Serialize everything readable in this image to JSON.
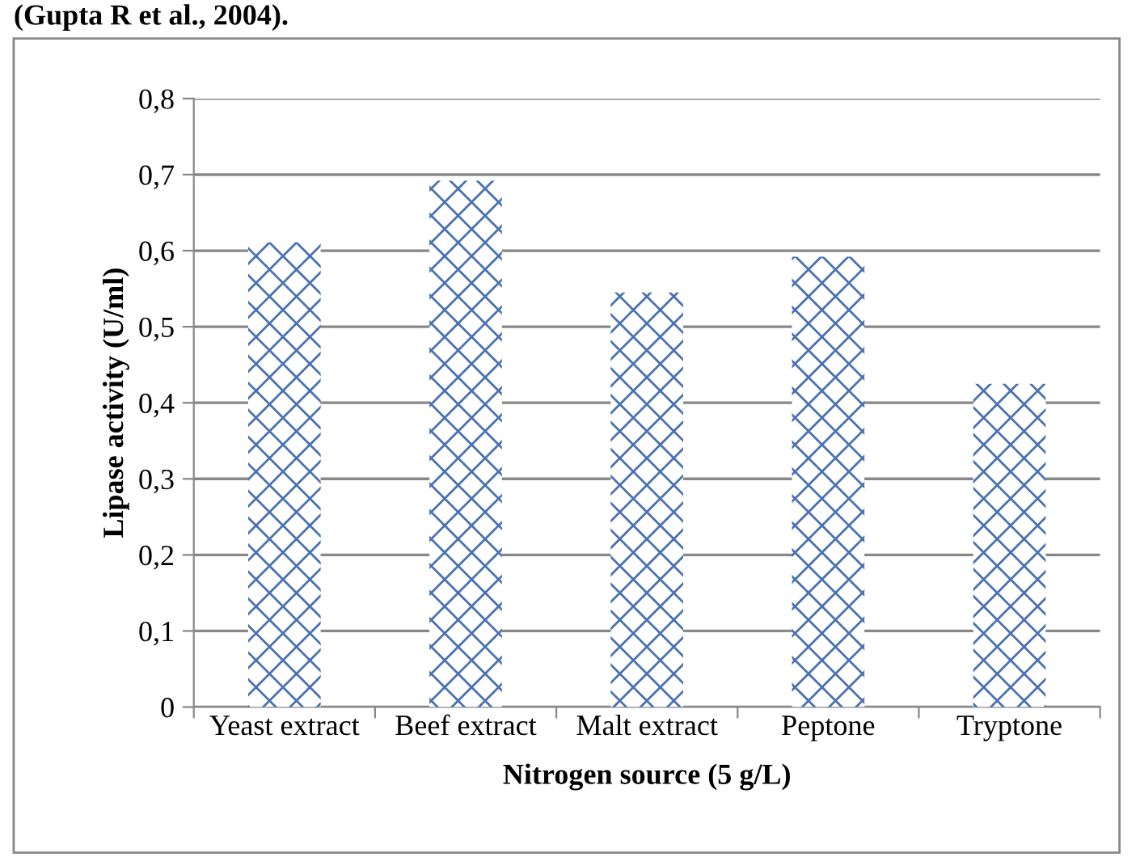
{
  "chart_data": {
    "type": "bar",
    "categories": [
      "Yeast extract",
      "Beef extract",
      "Malt extract",
      "Peptone",
      "Tryptone"
    ],
    "values": [
      0.611,
      0.692,
      0.545,
      0.592,
      0.425
    ],
    "color": "#4a72b0",
    "xlabel": "Nitrogen source (5 g/L)",
    "ylabel": "Lipase activity (U/ml)",
    "ylim": [
      0,
      0.8
    ],
    "yticks": [
      {
        "value": 0,
        "label": "0"
      },
      {
        "value": 0.1,
        "label": "0,1"
      },
      {
        "value": 0.2,
        "label": "0,2"
      },
      {
        "value": 0.3,
        "label": "0,3"
      },
      {
        "value": 0.4,
        "label": "0,4"
      },
      {
        "value": 0.5,
        "label": "0,5"
      },
      {
        "value": 0.6,
        "label": "0,6"
      },
      {
        "value": 0.7,
        "label": "0,7"
      },
      {
        "value": 0.8,
        "label": "0,8"
      }
    ],
    "grid": "y",
    "legend": false,
    "annotations": [
      "(Gupta R et al., 2004)."
    ]
  }
}
